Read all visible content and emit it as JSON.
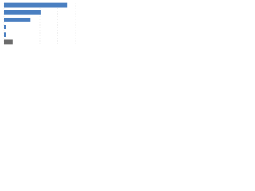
{
  "chart_data": {
    "type": "hbar",
    "categories": [
      null,
      null,
      null,
      null,
      null,
      null
    ],
    "values": [
      88,
      51,
      37,
      3,
      3,
      12
    ],
    "colors": [
      "#4a7fc1",
      "#4a7fc1",
      "#4a7fc1",
      "#4a7fc1",
      "#4a7fc1",
      "#6b6b6b"
    ],
    "xlim": [
      0,
      100
    ],
    "xticks": [
      0,
      25,
      50,
      75,
      100
    ],
    "grid": true
  }
}
